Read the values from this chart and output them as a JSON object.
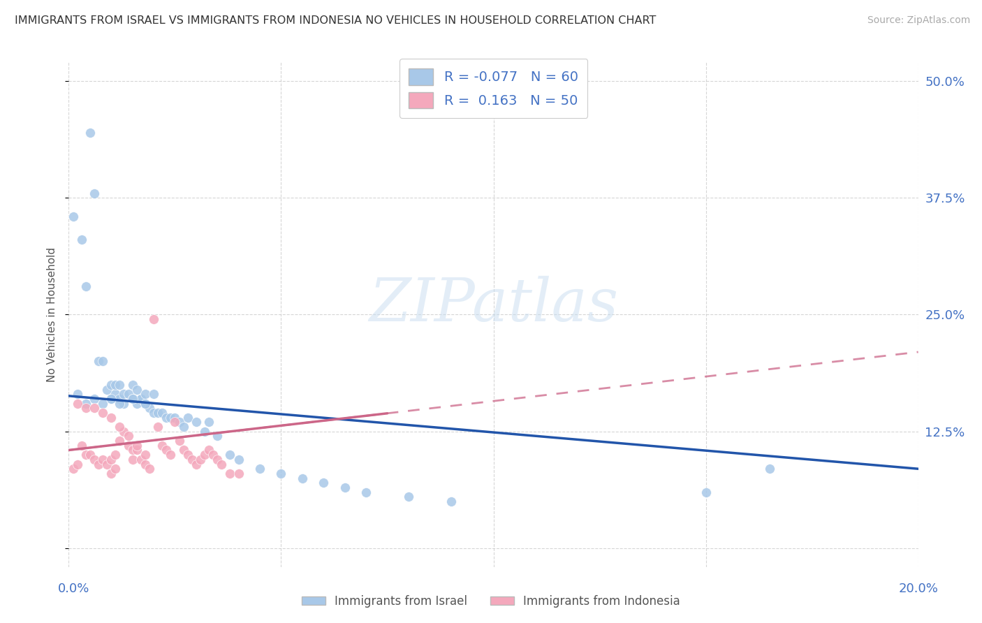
{
  "title": "IMMIGRANTS FROM ISRAEL VS IMMIGRANTS FROM INDONESIA NO VEHICLES IN HOUSEHOLD CORRELATION CHART",
  "source": "Source: ZipAtlas.com",
  "ylabel": "No Vehicles in Household",
  "xmin": 0.0,
  "xmax": 0.2,
  "ymin": -0.02,
  "ymax": 0.52,
  "israel_R": -0.077,
  "israel_N": 60,
  "indonesia_R": 0.163,
  "indonesia_N": 50,
  "israel_color": "#a8c8e8",
  "indonesia_color": "#f4a8bc",
  "israel_line_color": "#2255aa",
  "indonesia_line_color": "#cc6688",
  "watermark_text": "ZIPatlas",
  "background_color": "#ffffff",
  "grid_color": "#cccccc",
  "right_yticks": [
    0.0,
    0.125,
    0.25,
    0.375,
    0.5
  ],
  "right_ytick_labels": [
    "",
    "12.5%",
    "25.0%",
    "37.5%",
    "50.0%"
  ],
  "israel_scatter_x": [
    0.001,
    0.003,
    0.004,
    0.005,
    0.006,
    0.007,
    0.008,
    0.009,
    0.01,
    0.01,
    0.011,
    0.011,
    0.012,
    0.012,
    0.013,
    0.013,
    0.014,
    0.015,
    0.015,
    0.016,
    0.016,
    0.017,
    0.017,
    0.018,
    0.018,
    0.019,
    0.02,
    0.02,
    0.021,
    0.022,
    0.023,
    0.024,
    0.025,
    0.026,
    0.027,
    0.028,
    0.03,
    0.032,
    0.033,
    0.035,
    0.038,
    0.04,
    0.045,
    0.05,
    0.055,
    0.06,
    0.065,
    0.07,
    0.08,
    0.09,
    0.002,
    0.004,
    0.006,
    0.008,
    0.01,
    0.012,
    0.015,
    0.018,
    0.15,
    0.165
  ],
  "israel_scatter_y": [
    0.355,
    0.33,
    0.28,
    0.445,
    0.38,
    0.2,
    0.2,
    0.17,
    0.16,
    0.175,
    0.165,
    0.175,
    0.16,
    0.175,
    0.165,
    0.155,
    0.165,
    0.16,
    0.175,
    0.155,
    0.17,
    0.16,
    0.16,
    0.155,
    0.165,
    0.15,
    0.145,
    0.165,
    0.145,
    0.145,
    0.14,
    0.14,
    0.14,
    0.135,
    0.13,
    0.14,
    0.135,
    0.125,
    0.135,
    0.12,
    0.1,
    0.095,
    0.085,
    0.08,
    0.075,
    0.07,
    0.065,
    0.06,
    0.055,
    0.05,
    0.165,
    0.155,
    0.16,
    0.155,
    0.16,
    0.155,
    0.16,
    0.155,
    0.06,
    0.085
  ],
  "indonesia_scatter_x": [
    0.001,
    0.002,
    0.003,
    0.004,
    0.005,
    0.006,
    0.007,
    0.008,
    0.009,
    0.01,
    0.01,
    0.011,
    0.011,
    0.012,
    0.013,
    0.014,
    0.015,
    0.015,
    0.016,
    0.017,
    0.018,
    0.019,
    0.02,
    0.021,
    0.022,
    0.023,
    0.024,
    0.025,
    0.026,
    0.027,
    0.028,
    0.029,
    0.03,
    0.031,
    0.032,
    0.033,
    0.034,
    0.035,
    0.036,
    0.038,
    0.002,
    0.004,
    0.006,
    0.008,
    0.01,
    0.012,
    0.014,
    0.016,
    0.018,
    0.04
  ],
  "indonesia_scatter_y": [
    0.085,
    0.09,
    0.11,
    0.1,
    0.1,
    0.095,
    0.09,
    0.095,
    0.09,
    0.08,
    0.095,
    0.085,
    0.1,
    0.115,
    0.125,
    0.11,
    0.095,
    0.105,
    0.105,
    0.095,
    0.09,
    0.085,
    0.245,
    0.13,
    0.11,
    0.105,
    0.1,
    0.135,
    0.115,
    0.105,
    0.1,
    0.095,
    0.09,
    0.095,
    0.1,
    0.105,
    0.1,
    0.095,
    0.09,
    0.08,
    0.155,
    0.15,
    0.15,
    0.145,
    0.14,
    0.13,
    0.12,
    0.11,
    0.1,
    0.08
  ]
}
